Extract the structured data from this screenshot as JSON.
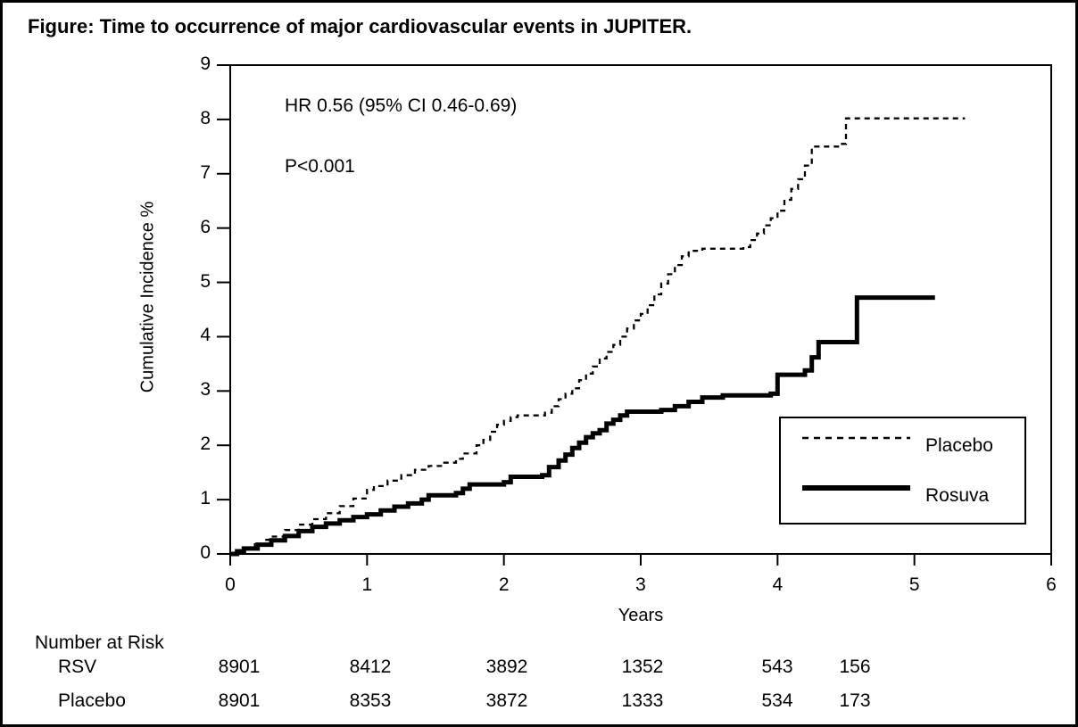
{
  "figure": {
    "title": "Figure: Time to occurrence of major cardiovascular events in JUPITER."
  },
  "chart_data": {
    "type": "line",
    "subtype": "kaplan-meier-step",
    "title": "Time to occurrence of major cardiovascular events in JUPITER",
    "xlabel": "Years",
    "ylabel": "Cumulative Incidence %",
    "xlim": [
      0,
      6
    ],
    "ylim": [
      0,
      9
    ],
    "xticks": [
      0,
      1,
      2,
      3,
      4,
      5,
      6
    ],
    "yticks": [
      0,
      1,
      2,
      3,
      4,
      5,
      6,
      7,
      8,
      9
    ],
    "grid": false,
    "annotations": [
      "HR 0.56 (95% CI 0.46-0.69)",
      "P<0.001"
    ],
    "legend": {
      "position": "inside-right",
      "entries": [
        {
          "name": "Placebo",
          "style": "dashed"
        },
        {
          "name": "Rosuva",
          "style": "solid-thick"
        }
      ]
    },
    "series": [
      {
        "name": "Placebo",
        "line": "dashed",
        "points": [
          [
            0,
            0
          ],
          [
            0.05,
            0.05
          ],
          [
            0.1,
            0.1
          ],
          [
            0.18,
            0.18
          ],
          [
            0.25,
            0.26
          ],
          [
            0.3,
            0.32
          ],
          [
            0.4,
            0.44
          ],
          [
            0.5,
            0.54
          ],
          [
            0.6,
            0.64
          ],
          [
            0.7,
            0.75
          ],
          [
            0.8,
            0.88
          ],
          [
            0.9,
            1.02
          ],
          [
            1.0,
            1.18
          ],
          [
            1.05,
            1.25
          ],
          [
            1.15,
            1.35
          ],
          [
            1.25,
            1.45
          ],
          [
            1.35,
            1.55
          ],
          [
            1.45,
            1.62
          ],
          [
            1.55,
            1.68
          ],
          [
            1.65,
            1.75
          ],
          [
            1.7,
            1.85
          ],
          [
            1.8,
            2.0
          ],
          [
            1.85,
            2.1
          ],
          [
            1.9,
            2.25
          ],
          [
            1.95,
            2.38
          ],
          [
            2.0,
            2.45
          ],
          [
            2.05,
            2.52
          ],
          [
            2.1,
            2.55
          ],
          [
            2.3,
            2.6
          ],
          [
            2.35,
            2.72
          ],
          [
            2.4,
            2.85
          ],
          [
            2.45,
            2.95
          ],
          [
            2.5,
            3.05
          ],
          [
            2.55,
            3.2
          ],
          [
            2.6,
            3.32
          ],
          [
            2.65,
            3.45
          ],
          [
            2.7,
            3.6
          ],
          [
            2.75,
            3.72
          ],
          [
            2.8,
            3.85
          ],
          [
            2.85,
            4.0
          ],
          [
            2.9,
            4.15
          ],
          [
            2.95,
            4.3
          ],
          [
            3.0,
            4.42
          ],
          [
            3.05,
            4.58
          ],
          [
            3.1,
            4.78
          ],
          [
            3.15,
            4.98
          ],
          [
            3.2,
            5.15
          ],
          [
            3.25,
            5.32
          ],
          [
            3.3,
            5.48
          ],
          [
            3.35,
            5.58
          ],
          [
            3.45,
            5.62
          ],
          [
            3.75,
            5.65
          ],
          [
            3.8,
            5.78
          ],
          [
            3.85,
            5.9
          ],
          [
            3.9,
            6.05
          ],
          [
            3.95,
            6.18
          ],
          [
            4.0,
            6.32
          ],
          [
            4.05,
            6.52
          ],
          [
            4.1,
            6.72
          ],
          [
            4.15,
            6.9
          ],
          [
            4.2,
            7.15
          ],
          [
            4.25,
            7.5
          ],
          [
            4.45,
            7.55
          ],
          [
            4.5,
            8.02
          ],
          [
            5.37,
            8.02
          ]
        ]
      },
      {
        "name": "Rosuva",
        "line": "solid",
        "points": [
          [
            0,
            0
          ],
          [
            0.05,
            0.05
          ],
          [
            0.1,
            0.1
          ],
          [
            0.2,
            0.17
          ],
          [
            0.3,
            0.25
          ],
          [
            0.4,
            0.33
          ],
          [
            0.5,
            0.42
          ],
          [
            0.6,
            0.5
          ],
          [
            0.7,
            0.56
          ],
          [
            0.8,
            0.62
          ],
          [
            0.9,
            0.68
          ],
          [
            1.0,
            0.73
          ],
          [
            1.1,
            0.8
          ],
          [
            1.2,
            0.87
          ],
          [
            1.3,
            0.93
          ],
          [
            1.4,
            1.0
          ],
          [
            1.45,
            1.08
          ],
          [
            1.65,
            1.12
          ],
          [
            1.7,
            1.2
          ],
          [
            1.75,
            1.28
          ],
          [
            2.0,
            1.32
          ],
          [
            2.05,
            1.42
          ],
          [
            2.28,
            1.45
          ],
          [
            2.33,
            1.6
          ],
          [
            2.4,
            1.72
          ],
          [
            2.45,
            1.83
          ],
          [
            2.5,
            1.95
          ],
          [
            2.55,
            2.05
          ],
          [
            2.6,
            2.15
          ],
          [
            2.65,
            2.22
          ],
          [
            2.7,
            2.28
          ],
          [
            2.75,
            2.4
          ],
          [
            2.8,
            2.47
          ],
          [
            2.85,
            2.55
          ],
          [
            2.9,
            2.62
          ],
          [
            3.15,
            2.65
          ],
          [
            3.25,
            2.72
          ],
          [
            3.35,
            2.8
          ],
          [
            3.45,
            2.88
          ],
          [
            3.6,
            2.92
          ],
          [
            3.95,
            2.95
          ],
          [
            4.0,
            3.3
          ],
          [
            4.2,
            3.38
          ],
          [
            4.25,
            3.62
          ],
          [
            4.3,
            3.9
          ],
          [
            4.58,
            4.72
          ],
          [
            5.15,
            4.72
          ]
        ]
      }
    ]
  },
  "risk_table": {
    "title": "Number at Risk",
    "rows": [
      {
        "label": "RSV",
        "values": [
          "8901",
          "8412",
          "3892",
          "1352",
          "543",
          "156"
        ]
      },
      {
        "label": "Placebo",
        "values": [
          "8901",
          "8353",
          "3872",
          "1333",
          "534",
          "173"
        ]
      }
    ]
  },
  "colors": {
    "line": "#000000",
    "background": "#ffffff",
    "border": "#000000"
  }
}
